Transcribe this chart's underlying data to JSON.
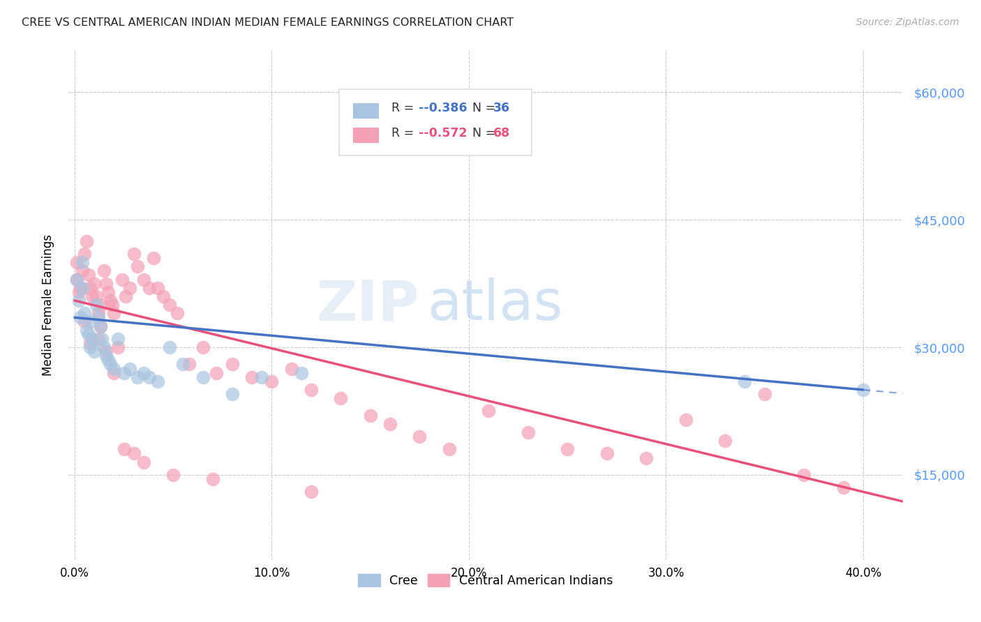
{
  "title": "CREE VS CENTRAL AMERICAN INDIAN MEDIAN FEMALE EARNINGS CORRELATION CHART",
  "source": "Source: ZipAtlas.com",
  "xlabel_ticks": [
    "0.0%",
    "10.0%",
    "20.0%",
    "30.0%",
    "40.0%"
  ],
  "ylabel_ticks": [
    "$15,000",
    "$30,000",
    "$45,000",
    "$60,000"
  ],
  "ylabel_label": "Median Female Earnings",
  "xmin": -0.003,
  "xmax": 0.42,
  "ymin": 5000,
  "ymax": 65000,
  "ytick_vals": [
    15000,
    30000,
    45000,
    60000
  ],
  "cree_color": "#a8c4e0",
  "cai_color": "#f4a0b5",
  "cree_line_color": "#4472c4",
  "cai_line_color": "#e8507a",
  "watermark_zip": "ZIP",
  "watermark_atlas": "atlas",
  "legend_cree_R": "-0.386",
  "legend_cree_N": "36",
  "legend_cai_R": "-0.572",
  "legend_cai_N": "68",
  "cree_scatter_x": [
    0.001,
    0.002,
    0.003,
    0.004,
    0.004,
    0.005,
    0.006,
    0.007,
    0.008,
    0.008,
    0.009,
    0.01,
    0.011,
    0.012,
    0.013,
    0.014,
    0.015,
    0.016,
    0.017,
    0.018,
    0.02,
    0.022,
    0.025,
    0.028,
    0.032,
    0.035,
    0.038,
    0.042,
    0.048,
    0.055,
    0.065,
    0.08,
    0.095,
    0.115,
    0.34,
    0.4
  ],
  "cree_scatter_y": [
    38000,
    35500,
    33500,
    37000,
    40000,
    34000,
    32000,
    31500,
    30000,
    33000,
    31000,
    29500,
    35000,
    33500,
    32500,
    31000,
    30000,
    29000,
    28500,
    28000,
    27500,
    31000,
    27000,
    27500,
    26500,
    27000,
    26500,
    26000,
    30000,
    28000,
    26500,
    24500,
    26500,
    27000,
    26000,
    25000
  ],
  "cai_scatter_x": [
    0.001,
    0.001,
    0.002,
    0.003,
    0.004,
    0.005,
    0.006,
    0.007,
    0.008,
    0.009,
    0.01,
    0.011,
    0.012,
    0.013,
    0.014,
    0.015,
    0.016,
    0.017,
    0.018,
    0.019,
    0.02,
    0.022,
    0.024,
    0.026,
    0.028,
    0.03,
    0.032,
    0.035,
    0.038,
    0.04,
    0.042,
    0.045,
    0.048,
    0.052,
    0.058,
    0.065,
    0.072,
    0.08,
    0.09,
    0.1,
    0.11,
    0.12,
    0.135,
    0.15,
    0.16,
    0.175,
    0.19,
    0.21,
    0.23,
    0.25,
    0.27,
    0.29,
    0.31,
    0.33,
    0.35,
    0.37,
    0.39,
    0.005,
    0.008,
    0.012,
    0.016,
    0.02,
    0.025,
    0.03,
    0.035,
    0.05,
    0.07,
    0.12
  ],
  "cai_scatter_y": [
    38000,
    40000,
    36500,
    37000,
    39000,
    41000,
    42500,
    38500,
    37000,
    36000,
    37500,
    36000,
    34000,
    32500,
    35000,
    39000,
    37500,
    36500,
    35500,
    35000,
    34000,
    30000,
    38000,
    36000,
    37000,
    41000,
    39500,
    38000,
    37000,
    40500,
    37000,
    36000,
    35000,
    34000,
    28000,
    30000,
    27000,
    28000,
    26500,
    26000,
    27500,
    25000,
    24000,
    22000,
    21000,
    19500,
    18000,
    22500,
    20000,
    18000,
    17500,
    17000,
    21500,
    19000,
    24500,
    15000,
    13500,
    33000,
    30500,
    31000,
    29500,
    27000,
    18000,
    17500,
    16500,
    15000,
    14500,
    13000
  ]
}
